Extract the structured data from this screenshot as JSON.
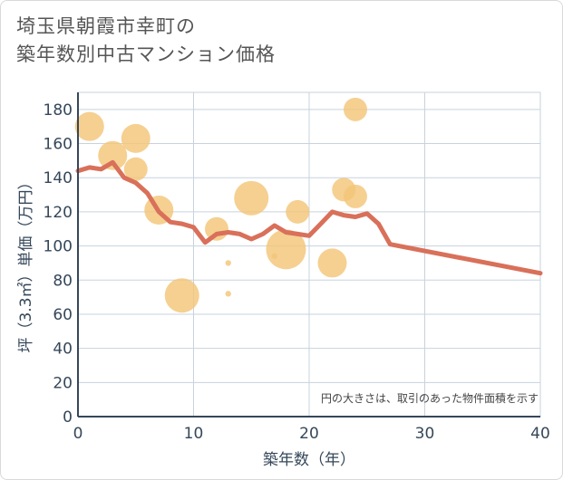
{
  "title": {
    "line1": "埼玉県朝霞市幸町の",
    "line2": "築年数別中古マンション価格"
  },
  "colors": {
    "line": "#d9705a",
    "bubble": "#f3c679",
    "grid": "#c7d3de",
    "axis_text": "#35475a"
  },
  "chart_data": {
    "type": "scatter+line",
    "xlabel": "築年数（年）",
    "ylabel": "坪（3.3㎡）単価（万円）",
    "xlim": [
      0,
      40
    ],
    "ylim": [
      0,
      190
    ],
    "xticks": [
      0,
      10,
      20,
      30,
      40
    ],
    "yticks": [
      0,
      20,
      40,
      60,
      80,
      100,
      120,
      140,
      160,
      180
    ],
    "note": "円の大きさは、取引のあった物件面積を示す",
    "line": {
      "x": [
        0,
        1,
        2,
        3,
        4,
        5,
        6,
        7,
        8,
        9,
        10,
        11,
        12,
        13,
        14,
        15,
        16,
        17,
        18,
        19,
        20,
        21,
        22,
        23,
        24,
        25,
        26,
        27,
        40
      ],
      "y": [
        144,
        146,
        145,
        149,
        140,
        137,
        131,
        120,
        114,
        113,
        111,
        102,
        107,
        108,
        107,
        104,
        107,
        112,
        108,
        107,
        106,
        113,
        120,
        118,
        117,
        119,
        113,
        101,
        84
      ]
    },
    "bubbles": [
      {
        "x": 1,
        "y": 170,
        "size": 3
      },
      {
        "x": 3,
        "y": 153,
        "size": 3
      },
      {
        "x": 5,
        "y": 163,
        "size": 3
      },
      {
        "x": 5,
        "y": 145,
        "size": 2
      },
      {
        "x": 7,
        "y": 121,
        "size": 3
      },
      {
        "x": 9,
        "y": 71,
        "size": 4
      },
      {
        "x": 12,
        "y": 110,
        "size": 2
      },
      {
        "x": 13,
        "y": 90,
        "size": 0.5
      },
      {
        "x": 13,
        "y": 72,
        "size": 0.5
      },
      {
        "x": 15,
        "y": 128,
        "size": 4
      },
      {
        "x": 17,
        "y": 94,
        "size": 0.5
      },
      {
        "x": 18,
        "y": 98,
        "size": 5
      },
      {
        "x": 19,
        "y": 120,
        "size": 2
      },
      {
        "x": 22,
        "y": 90,
        "size": 3
      },
      {
        "x": 23,
        "y": 133,
        "size": 2
      },
      {
        "x": 24,
        "y": 180,
        "size": 2
      },
      {
        "x": 24,
        "y": 129,
        "size": 2
      }
    ]
  }
}
